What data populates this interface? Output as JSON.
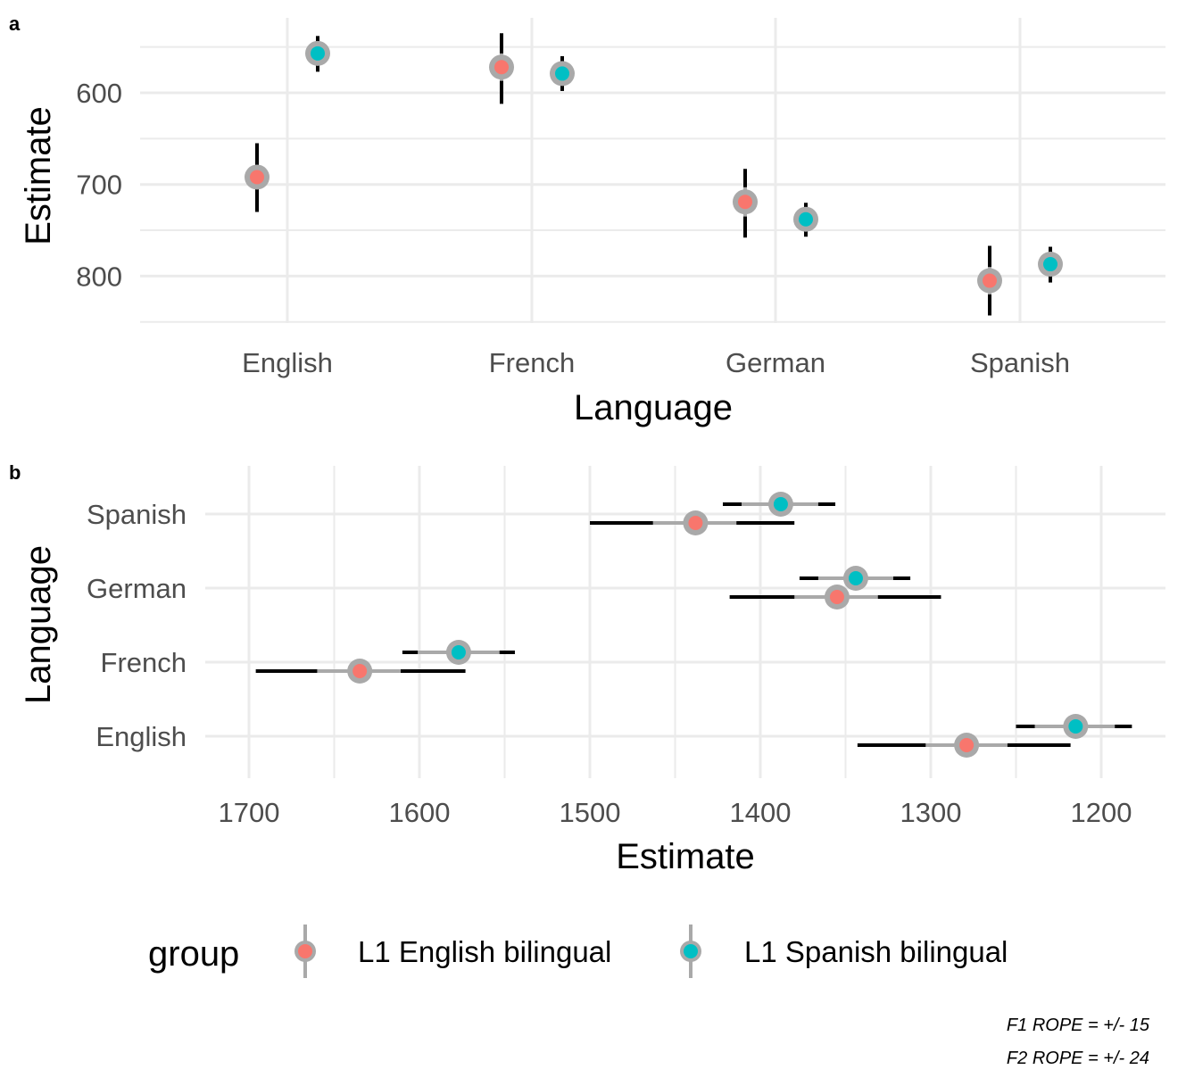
{
  "chart_data": [
    {
      "tag": "a",
      "type": "scatter",
      "orientation": "vertical",
      "xlabel": "Language",
      "ylabel": "Estimate",
      "categories": [
        "English",
        "French",
        "German",
        "Spanish"
      ],
      "y_reversed": true,
      "ylim": [
        550,
        850
      ],
      "yticks": [
        600,
        700,
        800
      ],
      "grid": true,
      "series": [
        {
          "name": "L1 English bilingual",
          "points": [
            {
              "category": "English",
              "estimate": 692,
              "inner": [
                680,
                704
              ],
              "outer": [
                655,
                730
              ]
            },
            {
              "category": "French",
              "estimate": 572,
              "inner": [
                557,
                587
              ],
              "outer": [
                535,
                612
              ]
            },
            {
              "category": "German",
              "estimate": 719,
              "inner": [
                703,
                735
              ],
              "outer": [
                683,
                758
              ]
            },
            {
              "category": "Spanish",
              "estimate": 805,
              "inner": [
                790,
                820
              ],
              "outer": [
                767,
                843
              ]
            }
          ]
        },
        {
          "name": "L1 Spanish bilingual",
          "points": [
            {
              "category": "English",
              "estimate": 557,
              "inner": [
                550,
                565
              ],
              "outer": [
                538,
                577
              ]
            },
            {
              "category": "French",
              "estimate": 579,
              "inner": [
                570,
                588
              ],
              "outer": [
                560,
                598
              ]
            },
            {
              "category": "German",
              "estimate": 738,
              "inner": [
                730,
                746
              ],
              "outer": [
                720,
                757
              ]
            },
            {
              "category": "Spanish",
              "estimate": 787,
              "inner": [
                779,
                796
              ],
              "outer": [
                768,
                807
              ]
            }
          ]
        }
      ]
    },
    {
      "tag": "b",
      "type": "scatter",
      "orientation": "horizontal",
      "xlabel": "Estimate",
      "ylabel": "Language",
      "categories": [
        "English",
        "French",
        "German",
        "Spanish"
      ],
      "x_reversed": true,
      "xlim": [
        1720,
        1150
      ],
      "xticks": [
        1700,
        1600,
        1500,
        1400,
        1300,
        1200
      ],
      "grid": true,
      "series": [
        {
          "name": "L1 English bilingual",
          "points": [
            {
              "category": "English",
              "estimate": 1279,
              "inner": [
                1303,
                1255
              ],
              "outer": [
                1343,
                1218
              ]
            },
            {
              "category": "French",
              "estimate": 1635,
              "inner": [
                1660,
                1611
              ],
              "outer": [
                1696,
                1573
              ]
            },
            {
              "category": "German",
              "estimate": 1355,
              "inner": [
                1380,
                1331
              ],
              "outer": [
                1418,
                1294
              ]
            },
            {
              "category": "Spanish",
              "estimate": 1438,
              "inner": [
                1463,
                1414
              ],
              "outer": [
                1500,
                1380
              ]
            }
          ]
        },
        {
          "name": "L1 Spanish bilingual",
          "points": [
            {
              "category": "English",
              "estimate": 1215,
              "inner": [
                1239,
                1192
              ],
              "outer": [
                1250,
                1182
              ]
            },
            {
              "category": "French",
              "estimate": 1577,
              "inner": [
                1601,
                1553
              ],
              "outer": [
                1610,
                1544
              ]
            },
            {
              "category": "German",
              "estimate": 1344,
              "inner": [
                1366,
                1322
              ],
              "outer": [
                1377,
                1312
              ]
            },
            {
              "category": "Spanish",
              "estimate": 1388,
              "inner": [
                1411,
                1366
              ],
              "outer": [
                1422,
                1356
              ]
            }
          ]
        }
      ]
    }
  ],
  "legend": {
    "title": "group",
    "position": "bottom",
    "items": [
      {
        "label": "L1 English bilingual",
        "color": "#F8766D"
      },
      {
        "label": "L1 Spanish bilingual",
        "color": "#00BFC4"
      }
    ]
  },
  "colors": {
    "L1 English bilingual": "#F8766D",
    "L1 Spanish bilingual": "#00BFC4",
    "grid": "#ebebeb",
    "interval_outer": "#000000",
    "interval_inner": "#a9a9a9"
  },
  "captions": [
    "F1 ROPE = +/- 15",
    "F2 ROPE = +/- 24"
  ]
}
